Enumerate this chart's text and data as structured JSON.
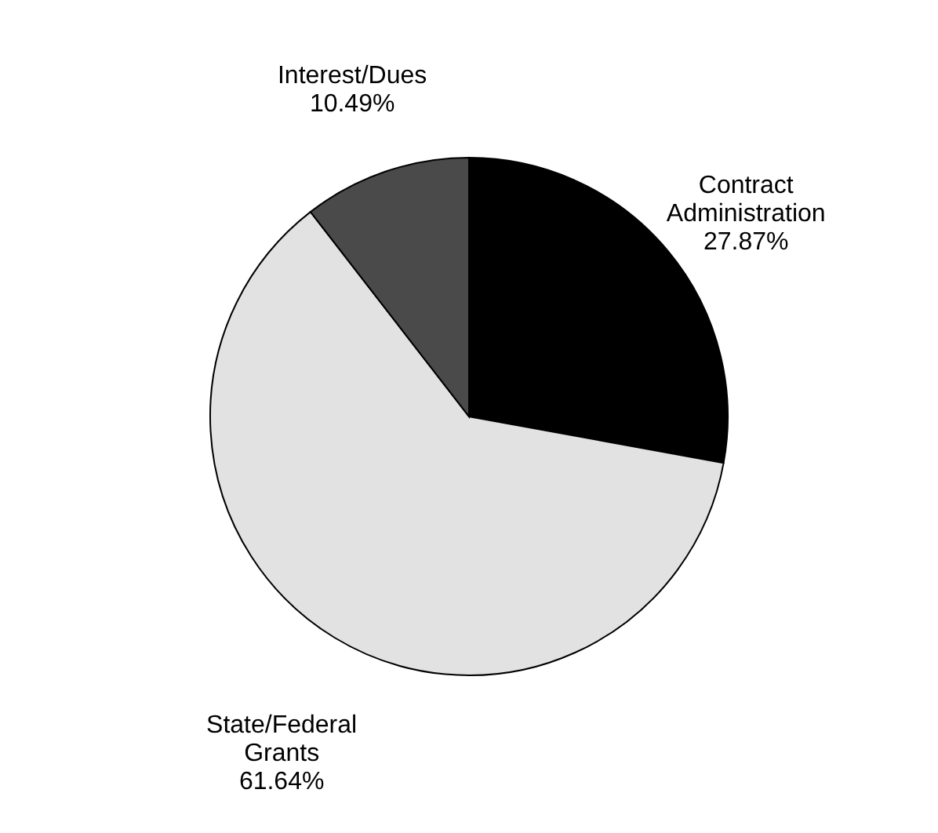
{
  "chart_data": {
    "type": "pie",
    "categories": [
      "Contract Administration",
      "State/Federal Grants",
      "Interest/Dues"
    ],
    "values": [
      27.87,
      61.64,
      10.49
    ],
    "colors": [
      "#000000",
      "#e2e2e2",
      "#4a4a4a"
    ],
    "value_labels": [
      "27.87%",
      "61.64%",
      "10.49%"
    ]
  }
}
